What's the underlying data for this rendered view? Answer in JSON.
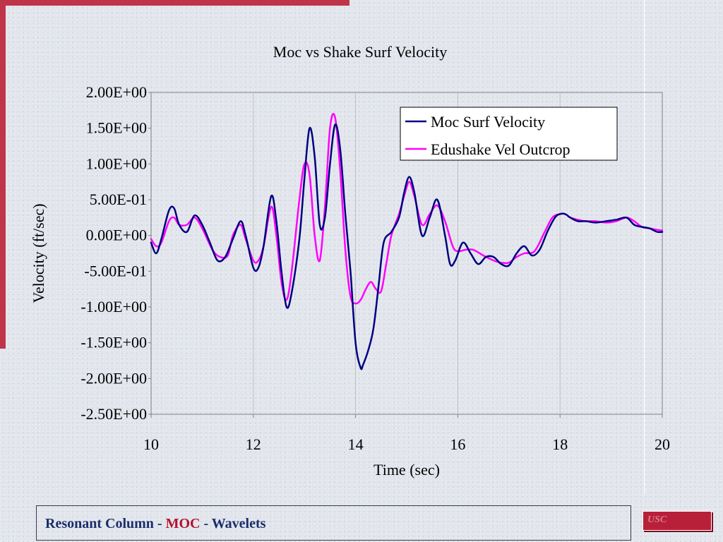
{
  "footer": {
    "part1": "Resonant Column - ",
    "part2": "MOC",
    "part3": " - Wavelets"
  },
  "logo": {
    "text": "USC"
  },
  "colors": {
    "moc": "#000080",
    "edushake": "#ff00ff",
    "accent": "#c0344a"
  },
  "chart_data": {
    "type": "line",
    "title": "Moc vs Shake Surf Velocity",
    "xlabel": "Time (sec)",
    "ylabel": "Velocity (ft/sec)",
    "xlim": [
      10,
      20
    ],
    "ylim": [
      -2.5,
      2.0
    ],
    "xticks": [
      10,
      12,
      14,
      16,
      18,
      20
    ],
    "xtick_labels": [
      "10",
      "12",
      "14",
      "16",
      "18",
      "20"
    ],
    "yticks": [
      2.0,
      1.5,
      1.0,
      0.5,
      0.0,
      -0.5,
      -1.0,
      -1.5,
      -2.0,
      -2.5
    ],
    "ytick_labels": [
      "2.00E+00",
      "1.50E+00",
      "1.00E+00",
      "5.00E-01",
      "0.00E+00",
      "-5.00E-01",
      "-1.00E+00",
      "-1.50E+00",
      "-2.00E+00",
      "-2.50E+00"
    ],
    "grid": "vertical",
    "legend_position": "top-right",
    "series": [
      {
        "name": "Moc Surf Velocity",
        "color": "#000080",
        "x": [
          10.0,
          10.1,
          10.2,
          10.35,
          10.45,
          10.55,
          10.7,
          10.85,
          11.0,
          11.15,
          11.3,
          11.45,
          11.6,
          11.75,
          11.85,
          12.0,
          12.1,
          12.2,
          12.35,
          12.45,
          12.55,
          12.65,
          12.75,
          12.9,
          13.0,
          13.1,
          13.2,
          13.3,
          13.4,
          13.5,
          13.6,
          13.7,
          13.8,
          13.9,
          14.0,
          14.1,
          14.15,
          14.25,
          14.35,
          14.45,
          14.55,
          14.7,
          14.85,
          14.95,
          15.05,
          15.15,
          15.3,
          15.45,
          15.6,
          15.75,
          15.85,
          15.95,
          16.1,
          16.25,
          16.4,
          16.55,
          16.7,
          16.85,
          17.0,
          17.15,
          17.3,
          17.45,
          17.6,
          17.75,
          17.9,
          18.0,
          18.1,
          18.2,
          18.35,
          18.5,
          18.7,
          18.9,
          19.1,
          19.3,
          19.45,
          19.6,
          19.75,
          19.9,
          20.0
        ],
        "y": [
          -0.1,
          -0.25,
          -0.05,
          0.35,
          0.38,
          0.15,
          0.05,
          0.28,
          0.15,
          -0.1,
          -0.35,
          -0.3,
          -0.05,
          0.2,
          0.0,
          -0.45,
          -0.45,
          -0.15,
          0.55,
          0.2,
          -0.5,
          -1.0,
          -0.8,
          -0.05,
          0.8,
          1.5,
          1.1,
          0.15,
          0.25,
          1.0,
          1.55,
          1.2,
          0.3,
          -0.5,
          -1.5,
          -1.85,
          -1.8,
          -1.6,
          -1.3,
          -0.7,
          -0.1,
          0.05,
          0.25,
          0.6,
          0.82,
          0.6,
          0.0,
          0.25,
          0.5,
          0.0,
          -0.4,
          -0.35,
          -0.1,
          -0.25,
          -0.4,
          -0.3,
          -0.3,
          -0.4,
          -0.42,
          -0.25,
          -0.15,
          -0.28,
          -0.2,
          0.05,
          0.25,
          0.3,
          0.3,
          0.25,
          0.2,
          0.2,
          0.18,
          0.2,
          0.22,
          0.25,
          0.15,
          0.12,
          0.1,
          0.05,
          0.05
        ]
      },
      {
        "name": "Edushake Vel Outcrop",
        "color": "#ff00ff",
        "x": [
          10.0,
          10.1,
          10.2,
          10.35,
          10.45,
          10.55,
          10.7,
          10.85,
          11.0,
          11.2,
          11.35,
          11.5,
          11.6,
          11.75,
          11.85,
          12.0,
          12.1,
          12.2,
          12.35,
          12.45,
          12.55,
          12.65,
          12.75,
          12.9,
          13.0,
          13.1,
          13.2,
          13.3,
          13.4,
          13.5,
          13.6,
          13.7,
          13.8,
          13.9,
          14.0,
          14.1,
          14.2,
          14.3,
          14.4,
          14.5,
          14.6,
          14.7,
          14.85,
          14.95,
          15.05,
          15.15,
          15.3,
          15.45,
          15.6,
          15.75,
          15.9,
          16.0,
          16.15,
          16.3,
          16.5,
          16.7,
          16.85,
          17.0,
          17.15,
          17.3,
          17.5,
          17.7,
          17.85,
          18.0,
          18.1,
          18.2,
          18.35,
          18.5,
          18.7,
          18.9,
          19.1,
          19.3,
          19.45,
          19.6,
          19.75,
          19.9,
          20.0
        ],
        "y": [
          -0.05,
          -0.15,
          -0.1,
          0.2,
          0.25,
          0.15,
          0.15,
          0.25,
          0.1,
          -0.2,
          -0.3,
          -0.28,
          0.0,
          0.15,
          -0.05,
          -0.35,
          -0.35,
          -0.15,
          0.4,
          0.0,
          -0.65,
          -0.9,
          -0.5,
          0.5,
          1.0,
          0.85,
          0.0,
          -0.35,
          0.4,
          1.5,
          1.65,
          0.9,
          -0.2,
          -0.85,
          -0.95,
          -0.9,
          -0.75,
          -0.65,
          -0.75,
          -0.78,
          -0.4,
          0.0,
          0.3,
          0.55,
          0.75,
          0.55,
          0.15,
          0.3,
          0.42,
          0.2,
          -0.15,
          -0.22,
          -0.2,
          -0.2,
          -0.28,
          -0.35,
          -0.38,
          -0.38,
          -0.3,
          -0.25,
          -0.22,
          0.05,
          0.25,
          0.3,
          0.3,
          0.25,
          0.22,
          0.2,
          0.2,
          0.18,
          0.2,
          0.25,
          0.2,
          0.12,
          0.1,
          0.08,
          0.07
        ]
      }
    ]
  }
}
